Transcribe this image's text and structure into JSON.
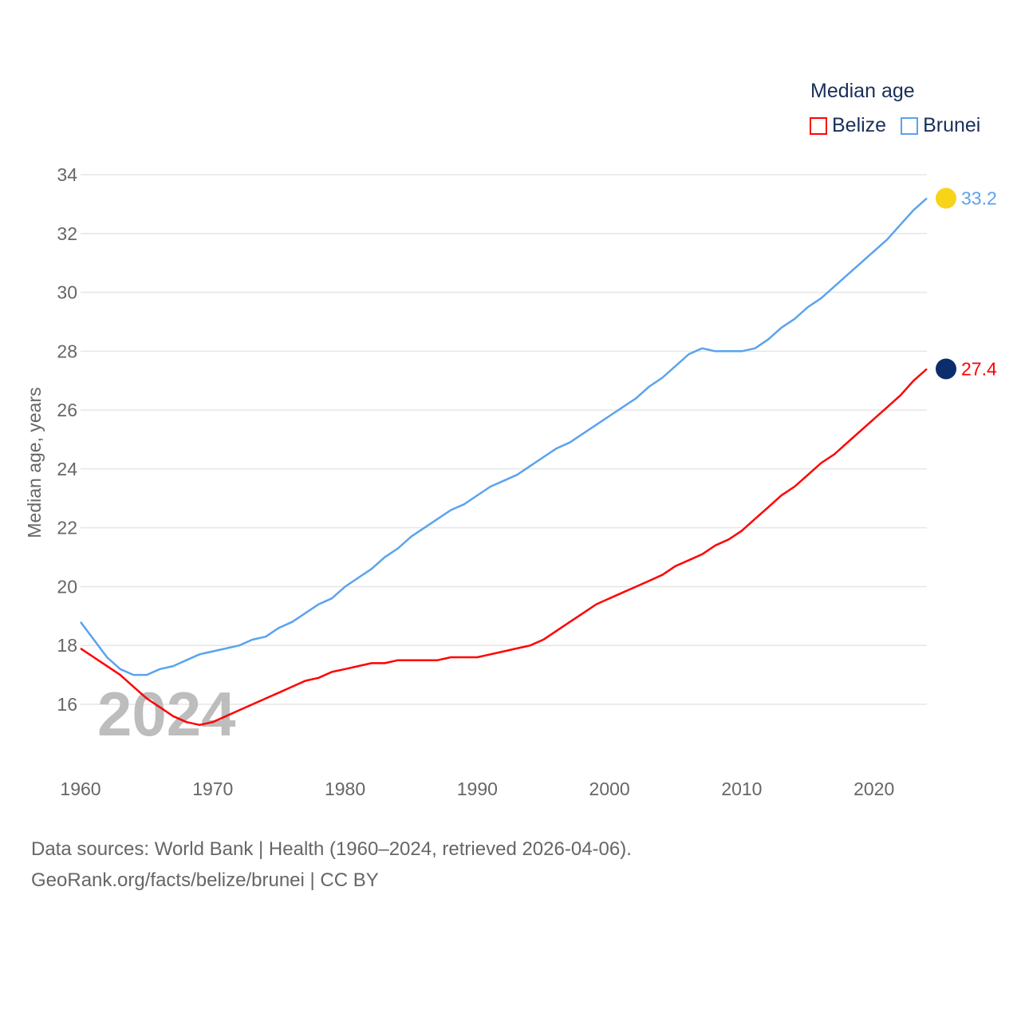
{
  "chart_data": {
    "type": "line",
    "title": "Median age",
    "ylabel": "Median age, years",
    "xlabel": "",
    "xlim": [
      1960,
      2024
    ],
    "ylim": [
      14.4,
      34
    ],
    "yticks": [
      16,
      18,
      20,
      22,
      24,
      26,
      28,
      30,
      32,
      34
    ],
    "xticks": [
      1960,
      1970,
      1980,
      1990,
      2000,
      2010,
      2020
    ],
    "grid": true,
    "legend_placement": "top-right",
    "year_label": "2024",
    "x_start": 1960,
    "series": [
      {
        "name": "Belize",
        "color": "#ff0000",
        "end_label": "27.4",
        "flag_color": "#0b2d6b",
        "values": [
          17.9,
          17.6,
          17.3,
          17.0,
          16.6,
          16.2,
          15.9,
          15.6,
          15.4,
          15.3,
          15.4,
          15.6,
          15.8,
          16.0,
          16.2,
          16.4,
          16.6,
          16.8,
          16.9,
          17.1,
          17.2,
          17.3,
          17.4,
          17.4,
          17.5,
          17.5,
          17.5,
          17.5,
          17.6,
          17.6,
          17.6,
          17.7,
          17.8,
          17.9,
          18.0,
          18.2,
          18.5,
          18.8,
          19.1,
          19.4,
          19.6,
          19.8,
          20.0,
          20.2,
          20.4,
          20.7,
          20.9,
          21.1,
          21.4,
          21.6,
          21.9,
          22.3,
          22.7,
          23.1,
          23.4,
          23.8,
          24.2,
          24.5,
          24.9,
          25.3,
          25.7,
          26.1,
          26.5,
          27.0,
          27.4
        ]
      },
      {
        "name": "Brunei",
        "color": "#5ba3ee",
        "end_label": "33.2",
        "flag_color": "#f7d417",
        "values": [
          18.8,
          18.2,
          17.6,
          17.2,
          17.0,
          17.0,
          17.2,
          17.3,
          17.5,
          17.7,
          17.8,
          17.9,
          18.0,
          18.2,
          18.3,
          18.6,
          18.8,
          19.1,
          19.4,
          19.6,
          20.0,
          20.3,
          20.6,
          21.0,
          21.3,
          21.7,
          22.0,
          22.3,
          22.6,
          22.8,
          23.1,
          23.4,
          23.6,
          23.8,
          24.1,
          24.4,
          24.7,
          24.9,
          25.2,
          25.5,
          25.8,
          26.1,
          26.4,
          26.8,
          27.1,
          27.5,
          27.9,
          28.1,
          28.0,
          28.0,
          28.0,
          28.1,
          28.4,
          28.8,
          29.1,
          29.5,
          29.8,
          30.2,
          30.6,
          31.0,
          31.4,
          31.8,
          32.3,
          32.8,
          33.2
        ]
      }
    ]
  },
  "source": {
    "line1": "Data sources: World Bank | Health (1960–2024, retrieved 2026-04-06).",
    "line2": "GeoRank.org/facts/belize/brunei | CC BY"
  }
}
